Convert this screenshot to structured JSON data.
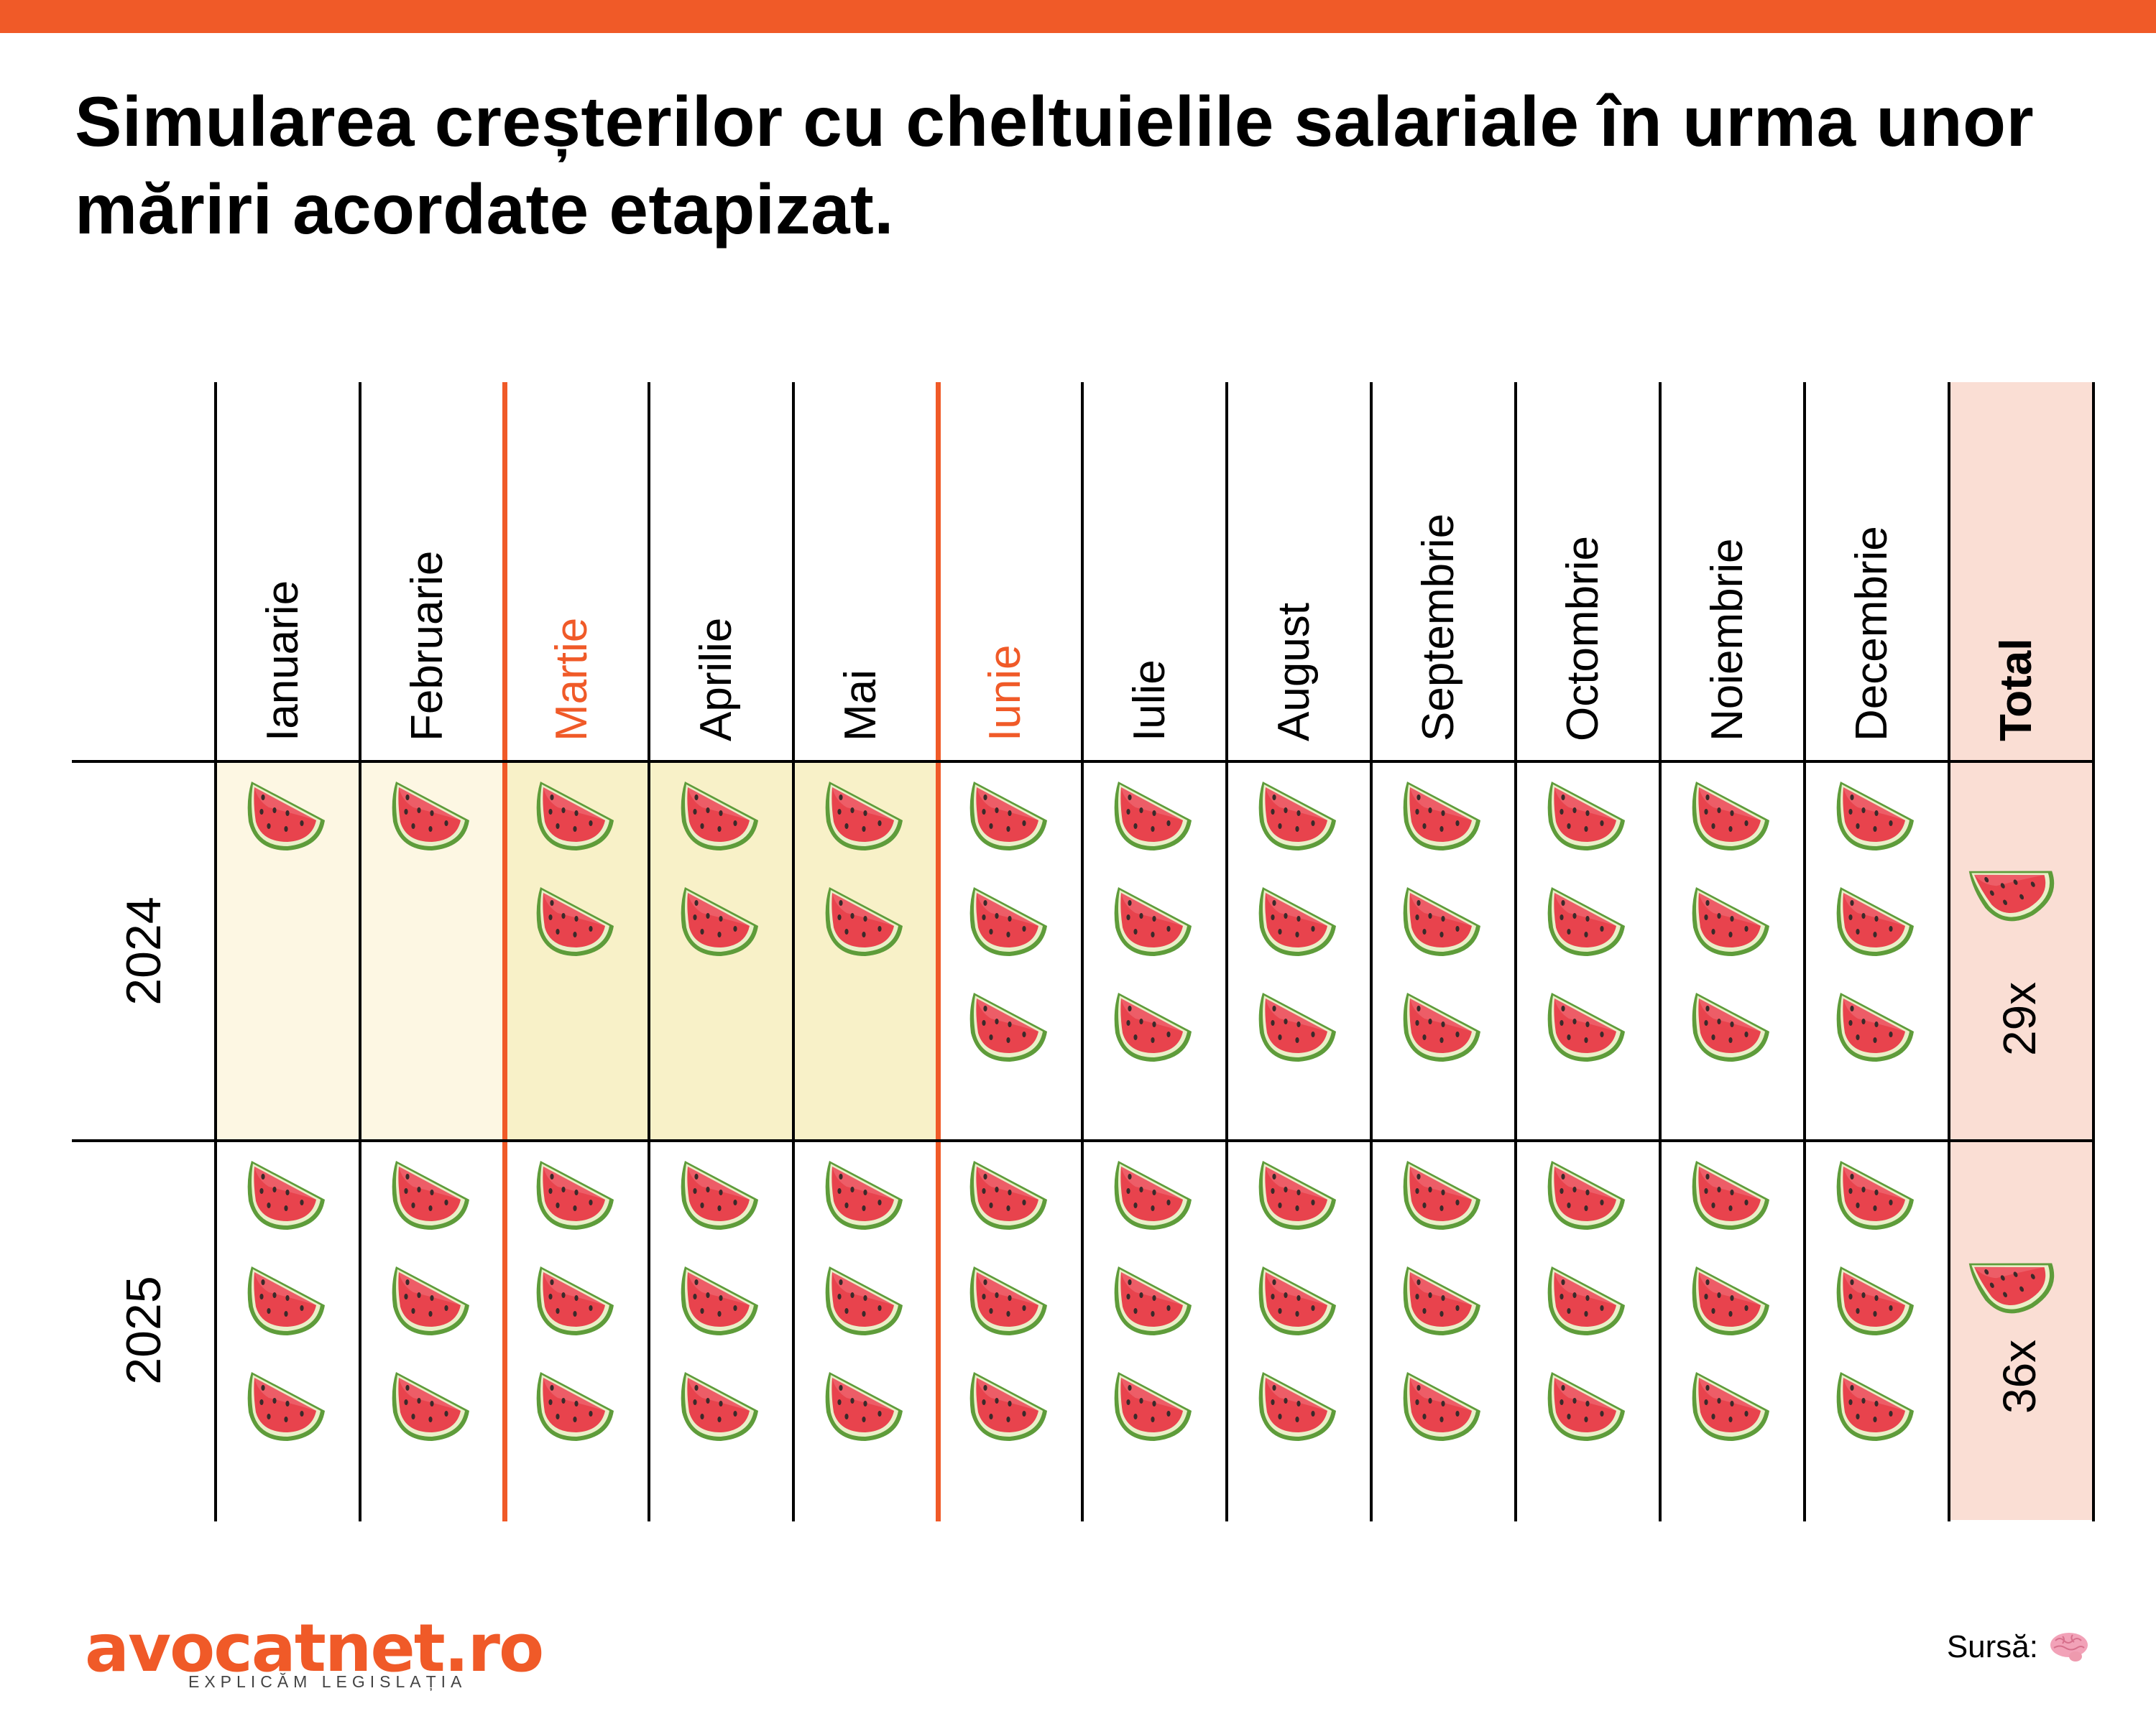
{
  "title": "Simularea creșterilor cu cheltuielile salariale în urma unor măriri acordate etapizat.",
  "colors": {
    "accent": "#F05A28",
    "cell_pre_raise": "#FDF7E3",
    "cell_first_raise": "#F8F1C8",
    "total_column": "#FADED4",
    "grid_line": "#000000"
  },
  "table": {
    "months": [
      {
        "label": "Ianuarie",
        "highlight": false
      },
      {
        "label": "Februarie",
        "highlight": false
      },
      {
        "label": "Martie",
        "highlight": true
      },
      {
        "label": "Aprilie",
        "highlight": false
      },
      {
        "label": "Mai",
        "highlight": false
      },
      {
        "label": "Iunie",
        "highlight": true
      },
      {
        "label": "Iulie",
        "highlight": false
      },
      {
        "label": "August",
        "highlight": false
      },
      {
        "label": "Septembrie",
        "highlight": false
      },
      {
        "label": "Octombrie",
        "highlight": false
      },
      {
        "label": "Noiembrie",
        "highlight": false
      },
      {
        "label": "Decembrie",
        "highlight": false
      }
    ],
    "total_label": "Total",
    "unit_icon": "watermelon-icon",
    "rows": [
      {
        "year": "2024",
        "counts": [
          1,
          1,
          2,
          2,
          2,
          3,
          3,
          3,
          3,
          3,
          3,
          3
        ],
        "total": "29x",
        "shading": [
          "pre",
          "pre",
          "first",
          "first",
          "first",
          "none",
          "none",
          "none",
          "none",
          "none",
          "none",
          "none"
        ]
      },
      {
        "year": "2025",
        "counts": [
          3,
          3,
          3,
          3,
          3,
          3,
          3,
          3,
          3,
          3,
          3,
          3
        ],
        "total": "36x",
        "shading": [
          "none",
          "none",
          "none",
          "none",
          "none",
          "none",
          "none",
          "none",
          "none",
          "none",
          "none",
          "none"
        ]
      }
    ]
  },
  "footer": {
    "logo": "avocatnet.ro",
    "tagline": "EXPLICĂM LEGISLAȚIA",
    "source_label": "Sursă:",
    "source_icon": "brain-icon"
  }
}
